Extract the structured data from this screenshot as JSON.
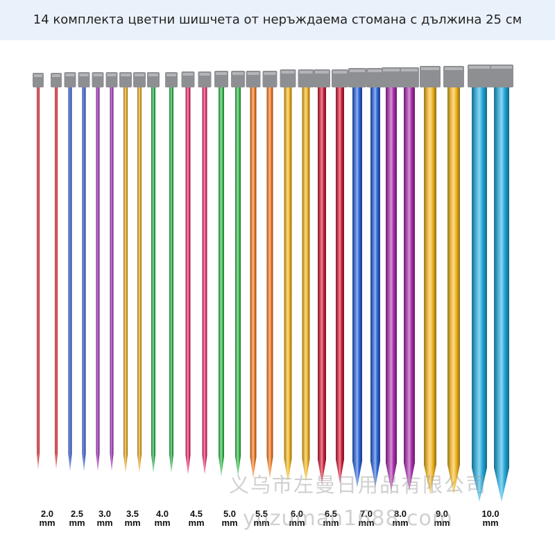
{
  "title": "14 комплекта цветни шишчета от неръждаема стомана с дължина 25 см",
  "unit": "mm",
  "sizes": [
    {
      "size": "2.0",
      "color": "#d8303a"
    },
    {
      "size": "2.5",
      "color": "#2e52c8"
    },
    {
      "size": "3.0",
      "color": "#9a2cb4"
    },
    {
      "size": "3.5",
      "color": "#e2a21e"
    },
    {
      "size": "4.0",
      "color": "#2aae4a"
    },
    {
      "size": "4.5",
      "color": "#e02e6e"
    },
    {
      "size": "5.0",
      "color": "#36b84e"
    },
    {
      "size": "5.5",
      "color": "#ee7a24"
    },
    {
      "size": "6.0",
      "color": "#ecb21e"
    },
    {
      "size": "6.5",
      "color": "#cc1e38"
    },
    {
      "size": "7.0",
      "color": "#2a62d6"
    },
    {
      "size": "8.0",
      "color": "#a82eaa"
    },
    {
      "size": "9.0",
      "color": "#f0b41e"
    },
    {
      "size": "10.0",
      "color": "#22a8da"
    }
  ],
  "watermark_cn": "义乌市左曼日用品有限公司",
  "watermark_url": "yuzuman1688.com"
}
